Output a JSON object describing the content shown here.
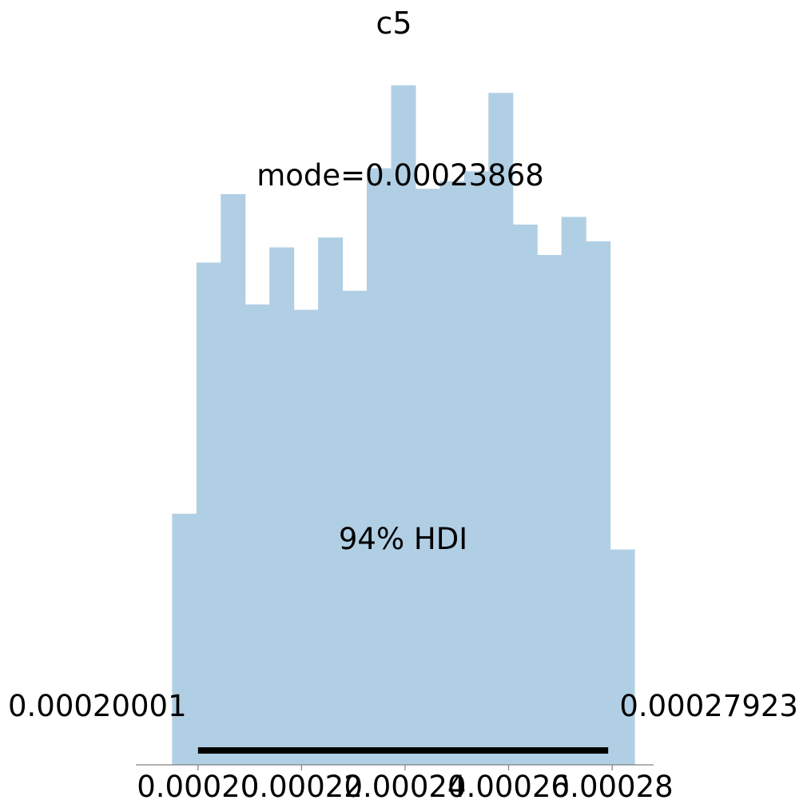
{
  "chart_data": {
    "type": "bar",
    "title": "c5",
    "bin_edges": [
      0.000195,
      0.0001997,
      0.0002044,
      0.0002091,
      0.0002138,
      0.0002185,
      0.0002232,
      0.0002279,
      0.0002326,
      0.0002373,
      0.000242,
      0.0002467,
      0.0002514,
      0.0002561,
      0.0002608,
      0.0002655,
      0.0002702,
      0.0002749,
      0.0002796,
      0.0002843
    ],
    "counts": [
      3.3,
      6.6,
      7.5,
      6.05,
      6.8,
      5.98,
      6.93,
      6.23,
      7.84,
      8.93,
      7.57,
      7.67,
      7.8,
      8.83,
      7.1,
      6.7,
      7.2,
      6.88,
      2.83
    ],
    "ylim": [
      0,
      9.2
    ],
    "xlim": [
      0.000188,
      0.000288
    ],
    "xticks": [
      0.0002,
      0.00022,
      0.00024,
      0.00026,
      0.00028
    ],
    "xtick_labels": [
      "0.00020",
      "0.00022",
      "0.00024",
      "0.00026",
      "0.00028"
    ],
    "bar_color": "#b1cfe4",
    "mode": {
      "value": 0.00023868,
      "label": "mode=0.00023868"
    },
    "hdi": {
      "label": "94% HDI",
      "low": 0.00020001,
      "high": 0.00027923,
      "low_label": "0.00020001",
      "high_label": "0.00027923"
    }
  }
}
